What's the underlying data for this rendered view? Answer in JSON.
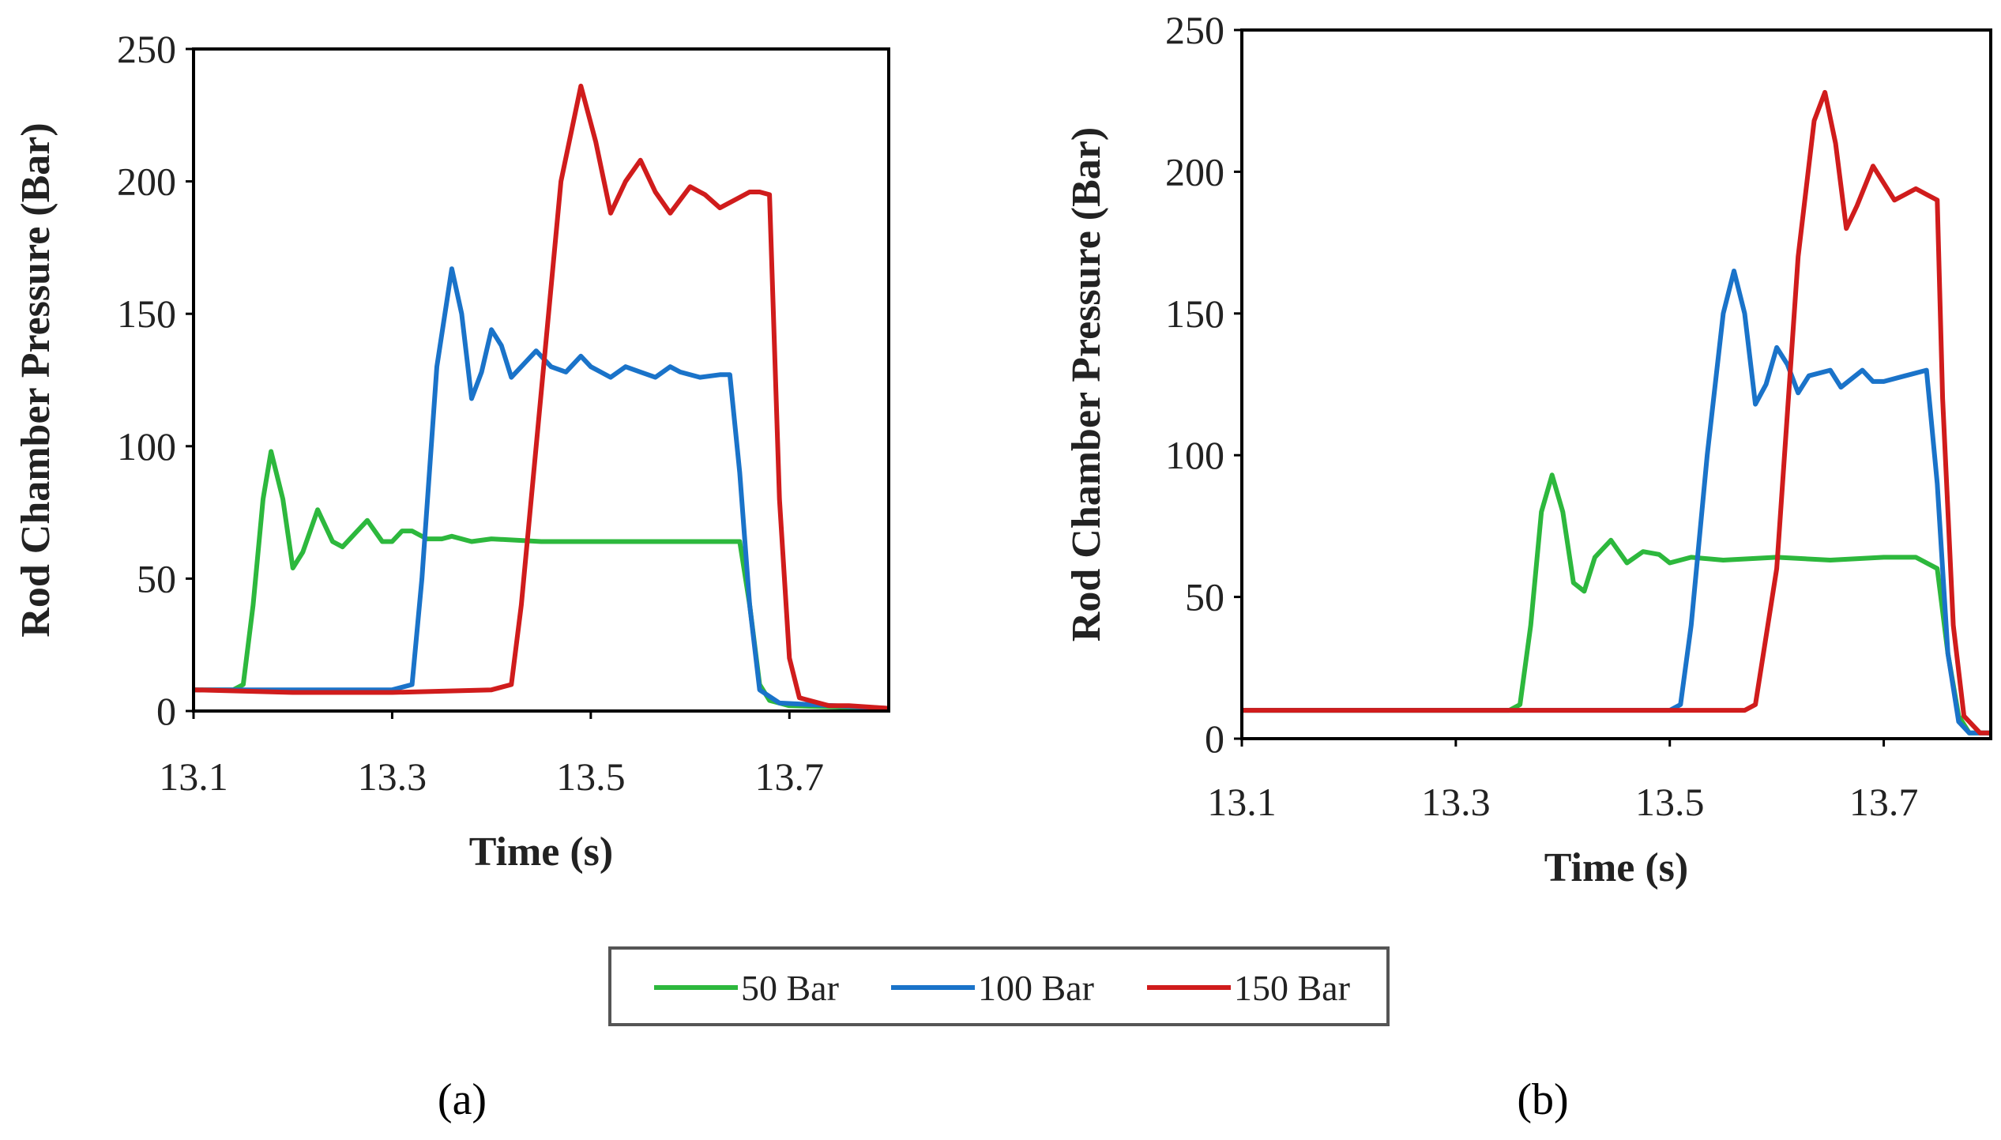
{
  "chart_data": [
    {
      "panel_label": "(a)",
      "type": "line",
      "xlabel": "Time (s)",
      "ylabel": "Rod Chamber Pressure (Bar)",
      "xlim": [
        13.1,
        13.8
      ],
      "ylim": [
        0,
        250
      ],
      "xticks": [
        13.1,
        13.3,
        13.5,
        13.7
      ],
      "xtick_labels": [
        "13.1",
        "13.3",
        "13.5",
        "13.7"
      ],
      "yticks": [
        0,
        50,
        100,
        150,
        200,
        250
      ],
      "ytick_labels": [
        "0",
        "50",
        "100",
        "150",
        "200",
        "250"
      ],
      "grid": false,
      "series": [
        {
          "name": "50 Bar",
          "color": "#2db83d",
          "points": [
            [
              13.1,
              8
            ],
            [
              13.14,
              8
            ],
            [
              13.15,
              10
            ],
            [
              13.16,
              40
            ],
            [
              13.17,
              80
            ],
            [
              13.178,
              98
            ],
            [
              13.19,
              80
            ],
            [
              13.2,
              54
            ],
            [
              13.21,
              60
            ],
            [
              13.225,
              76
            ],
            [
              13.24,
              64
            ],
            [
              13.25,
              62
            ],
            [
              13.265,
              68
            ],
            [
              13.275,
              72
            ],
            [
              13.29,
              64
            ],
            [
              13.3,
              64
            ],
            [
              13.31,
              68
            ],
            [
              13.32,
              68
            ],
            [
              13.335,
              65
            ],
            [
              13.35,
              65
            ],
            [
              13.36,
              66
            ],
            [
              13.38,
              64
            ],
            [
              13.4,
              65
            ],
            [
              13.45,
              64
            ],
            [
              13.5,
              64
            ],
            [
              13.6,
              64
            ],
            [
              13.65,
              64
            ],
            [
              13.66,
              40
            ],
            [
              13.67,
              10
            ],
            [
              13.68,
              4
            ],
            [
              13.7,
              2
            ],
            [
              13.8,
              1
            ]
          ]
        },
        {
          "name": "100 Bar",
          "color": "#1a73c9",
          "points": [
            [
              13.1,
              8
            ],
            [
              13.2,
              8
            ],
            [
              13.3,
              8
            ],
            [
              13.32,
              10
            ],
            [
              13.33,
              50
            ],
            [
              13.345,
              130
            ],
            [
              13.36,
              167
            ],
            [
              13.37,
              150
            ],
            [
              13.38,
              118
            ],
            [
              13.39,
              128
            ],
            [
              13.4,
              144
            ],
            [
              13.41,
              138
            ],
            [
              13.42,
              126
            ],
            [
              13.435,
              132
            ],
            [
              13.445,
              136
            ],
            [
              13.46,
              130
            ],
            [
              13.475,
              128
            ],
            [
              13.49,
              134
            ],
            [
              13.5,
              130
            ],
            [
              13.52,
              126
            ],
            [
              13.535,
              130
            ],
            [
              13.55,
              128
            ],
            [
              13.565,
              126
            ],
            [
              13.58,
              130
            ],
            [
              13.59,
              128
            ],
            [
              13.61,
              126
            ],
            [
              13.63,
              127
            ],
            [
              13.64,
              127
            ],
            [
              13.65,
              90
            ],
            [
              13.66,
              40
            ],
            [
              13.67,
              8
            ],
            [
              13.69,
              3
            ],
            [
              13.8,
              1
            ]
          ]
        },
        {
          "name": "150 Bar",
          "color": "#d01c1c",
          "points": [
            [
              13.1,
              8
            ],
            [
              13.2,
              7
            ],
            [
              13.3,
              7
            ],
            [
              13.4,
              8
            ],
            [
              13.42,
              10
            ],
            [
              13.43,
              40
            ],
            [
              13.45,
              120
            ],
            [
              13.47,
              200
            ],
            [
              13.49,
              236
            ],
            [
              13.505,
              215
            ],
            [
              13.52,
              188
            ],
            [
              13.535,
              200
            ],
            [
              13.55,
              208
            ],
            [
              13.565,
              196
            ],
            [
              13.58,
              188
            ],
            [
              13.6,
              198
            ],
            [
              13.615,
              195
            ],
            [
              13.63,
              190
            ],
            [
              13.645,
              193
            ],
            [
              13.66,
              196
            ],
            [
              13.67,
              196
            ],
            [
              13.68,
              195
            ],
            [
              13.69,
              80
            ],
            [
              13.7,
              20
            ],
            [
              13.71,
              5
            ],
            [
              13.74,
              2
            ],
            [
              13.76,
              2
            ],
            [
              13.8,
              1
            ]
          ]
        }
      ]
    },
    {
      "panel_label": "(b)",
      "type": "line",
      "xlabel": "Time (s)",
      "ylabel": "Rod Chamber Pressure (Bar)",
      "xlim": [
        13.1,
        13.8
      ],
      "ylim": [
        0,
        250
      ],
      "xticks": [
        13.1,
        13.3,
        13.5,
        13.7
      ],
      "xtick_labels": [
        "13.1",
        "13.3",
        "13.5",
        "13.7"
      ],
      "yticks": [
        0,
        50,
        100,
        150,
        200,
        250
      ],
      "ytick_labels": [
        "0",
        "50",
        "100",
        "150",
        "200",
        "250"
      ],
      "grid": false,
      "series": [
        {
          "name": "50 Bar",
          "color": "#2db83d",
          "points": [
            [
              13.1,
              10
            ],
            [
              13.2,
              10
            ],
            [
              13.3,
              10
            ],
            [
              13.35,
              10
            ],
            [
              13.36,
              12
            ],
            [
              13.37,
              40
            ],
            [
              13.38,
              80
            ],
            [
              13.39,
              93
            ],
            [
              13.4,
              80
            ],
            [
              13.41,
              55
            ],
            [
              13.42,
              52
            ],
            [
              13.43,
              64
            ],
            [
              13.445,
              70
            ],
            [
              13.46,
              62
            ],
            [
              13.475,
              66
            ],
            [
              13.49,
              65
            ],
            [
              13.5,
              62
            ],
            [
              13.52,
              64
            ],
            [
              13.55,
              63
            ],
            [
              13.6,
              64
            ],
            [
              13.65,
              63
            ],
            [
              13.7,
              64
            ],
            [
              13.73,
              64
            ],
            [
              13.75,
              60
            ],
            [
              13.76,
              30
            ],
            [
              13.77,
              8
            ],
            [
              13.78,
              2
            ],
            [
              13.8,
              2
            ]
          ]
        },
        {
          "name": "100 Bar",
          "color": "#1a73c9",
          "points": [
            [
              13.1,
              10
            ],
            [
              13.2,
              10
            ],
            [
              13.3,
              10
            ],
            [
              13.4,
              10
            ],
            [
              13.5,
              10
            ],
            [
              13.51,
              12
            ],
            [
              13.52,
              40
            ],
            [
              13.535,
              100
            ],
            [
              13.55,
              150
            ],
            [
              13.56,
              165
            ],
            [
              13.57,
              150
            ],
            [
              13.58,
              118
            ],
            [
              13.59,
              125
            ],
            [
              13.6,
              138
            ],
            [
              13.61,
              132
            ],
            [
              13.62,
              122
            ],
            [
              13.63,
              128
            ],
            [
              13.65,
              130
            ],
            [
              13.66,
              124
            ],
            [
              13.68,
              130
            ],
            [
              13.69,
              126
            ],
            [
              13.7,
              126
            ],
            [
              13.72,
              128
            ],
            [
              13.74,
              130
            ],
            [
              13.75,
              90
            ],
            [
              13.76,
              30
            ],
            [
              13.77,
              6
            ],
            [
              13.78,
              2
            ],
            [
              13.8,
              2
            ]
          ]
        },
        {
          "name": "150 Bar",
          "color": "#d01c1c",
          "points": [
            [
              13.1,
              10
            ],
            [
              13.2,
              10
            ],
            [
              13.3,
              10
            ],
            [
              13.4,
              10
            ],
            [
              13.5,
              10
            ],
            [
              13.57,
              10
            ],
            [
              13.58,
              12
            ],
            [
              13.6,
              60
            ],
            [
              13.62,
              170
            ],
            [
              13.635,
              218
            ],
            [
              13.645,
              228
            ],
            [
              13.655,
              210
            ],
            [
              13.665,
              180
            ],
            [
              13.675,
              188
            ],
            [
              13.69,
              202
            ],
            [
              13.7,
              196
            ],
            [
              13.71,
              190
            ],
            [
              13.72,
              192
            ],
            [
              13.73,
              194
            ],
            [
              13.74,
              192
            ],
            [
              13.75,
              190
            ],
            [
              13.755,
              120
            ],
            [
              13.765,
              40
            ],
            [
              13.775,
              8
            ],
            [
              13.79,
              2
            ],
            [
              13.8,
              2
            ]
          ]
        }
      ]
    }
  ],
  "legend": {
    "items": [
      {
        "label": "50 Bar",
        "color": "#2db83d"
      },
      {
        "label": "100 Bar",
        "color": "#1a73c9"
      },
      {
        "label": "150 Bar",
        "color": "#d01c1c"
      }
    ]
  }
}
